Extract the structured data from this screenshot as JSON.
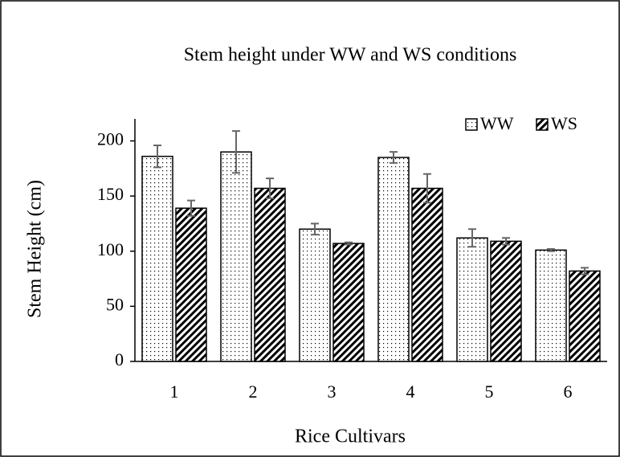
{
  "chart_data": {
    "type": "bar",
    "title": "Stem height under WW and WS conditions",
    "x_label": "Rice Cultivars",
    "y_label": "Stem Height (cm)",
    "categories": [
      "1",
      "2",
      "3",
      "4",
      "5",
      "6"
    ],
    "series": [
      {
        "name": "WW",
        "color": "#000000",
        "pattern": "dots",
        "values": [
          186,
          190,
          120,
          185,
          112,
          101
        ],
        "errors": [
          10,
          19,
          5,
          5,
          8,
          1
        ]
      },
      {
        "name": "WS",
        "color": "#000000",
        "pattern": "diagonal",
        "values": [
          139,
          157,
          107,
          157,
          109,
          82
        ],
        "errors": [
          7,
          9,
          1,
          13,
          3,
          3
        ]
      }
    ],
    "ylim": [
      0,
      220
    ],
    "yticks": [
      0,
      50,
      100,
      150,
      200
    ],
    "grid": false,
    "legend": "top-right"
  }
}
